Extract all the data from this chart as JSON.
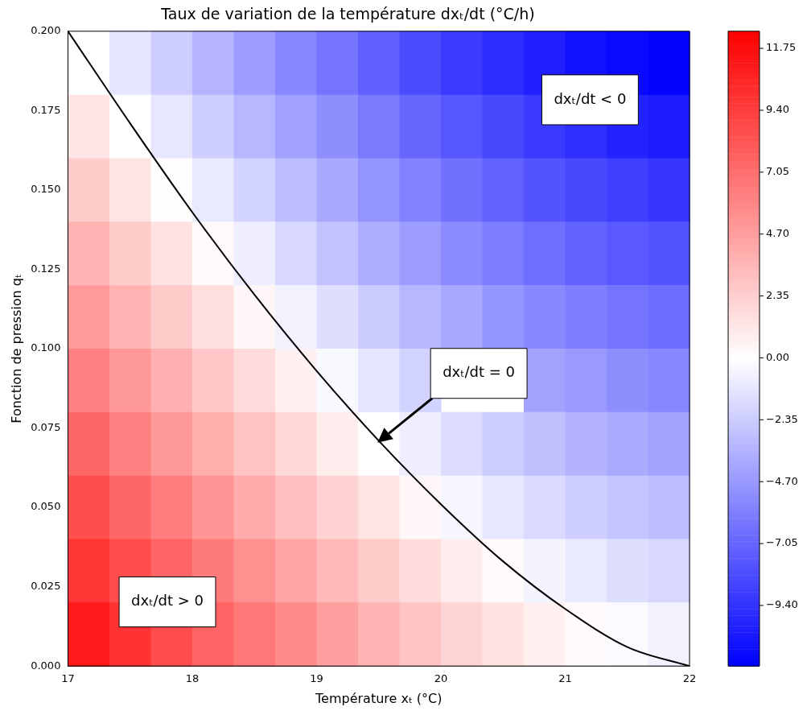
{
  "chart_data": {
    "type": "heatmap",
    "title": "Taux de variation de la température dxₜ/dt (°C/h)",
    "xlabel": "Température xₜ (°C)",
    "ylabel": "Fonction de pression qₜ",
    "x": [
      17.167,
      17.5,
      17.833,
      18.167,
      18.5,
      18.833,
      19.167,
      19.5,
      19.833,
      20.167,
      20.5,
      20.833,
      21.167,
      21.5,
      21.833
    ],
    "y": [
      0.19,
      0.17,
      0.15,
      0.13,
      0.11,
      0.09,
      0.07,
      0.05,
      0.03,
      0.01
    ],
    "xlim": [
      17,
      22
    ],
    "xticks": [
      17,
      18,
      19,
      20,
      21,
      22
    ],
    "ylim": [
      0,
      0.2
    ],
    "yticks": [
      {
        "value": 0,
        "label": "0.000"
      },
      {
        "value": 0.025,
        "label": "0.025"
      },
      {
        "value": 0.05,
        "label": "0.050"
      },
      {
        "value": 0.075,
        "label": "0.075"
      },
      {
        "value": 0.1,
        "label": "0.100"
      },
      {
        "value": 0.125,
        "label": "0.125"
      },
      {
        "value": 0.15,
        "label": "0.150"
      },
      {
        "value": 0.175,
        "label": "0.175"
      },
      {
        "value": 0.2,
        "label": "0.200"
      }
    ],
    "cells": [
      [
        0.0,
        -1.2,
        -2.3,
        -3.4,
        -4.5,
        -5.5,
        -6.4,
        -7.3,
        -8.2,
        -9.0,
        -9.7,
        -10.3,
        -10.9,
        -11.3,
        -11.6
      ],
      [
        1.2,
        0.0,
        -1.1,
        -2.2,
        -3.3,
        -4.3,
        -5.2,
        -6.1,
        -7.0,
        -7.7,
        -8.4,
        -9.1,
        -9.6,
        -10.1,
        -10.4
      ],
      [
        2.5,
        1.3,
        0.1,
        -1.0,
        -2.0,
        -3.0,
        -4.0,
        -4.9,
        -5.7,
        -6.5,
        -7.2,
        -7.9,
        -8.4,
        -8.8,
        -9.2
      ],
      [
        3.7,
        2.5,
        1.4,
        0.3,
        -0.8,
        -1.8,
        -2.8,
        -3.7,
        -4.5,
        -5.3,
        -6.0,
        -6.6,
        -7.2,
        -7.6,
        -7.9
      ],
      [
        4.9,
        3.7,
        2.6,
        1.5,
        0.4,
        -0.6,
        -1.5,
        -2.4,
        -3.3,
        -4.0,
        -4.8,
        -5.4,
        -5.9,
        -6.4,
        -6.7
      ],
      [
        6.2,
        5.0,
        3.8,
        2.7,
        1.7,
        0.7,
        -0.3,
        -1.2,
        -2.0,
        null,
        null,
        -4.2,
        -4.7,
        -5.2,
        -5.5
      ],
      [
        7.4,
        6.2,
        5.0,
        4.0,
        2.9,
        1.9,
        0.9,
        0.0,
        -0.8,
        -1.6,
        -2.3,
        -2.9,
        -3.5,
        -3.9,
        -4.2
      ],
      [
        8.6,
        7.4,
        6.3,
        5.2,
        4.1,
        3.1,
        2.2,
        1.3,
        0.4,
        -0.4,
        -1.1,
        -1.7,
        -2.2,
        -2.7,
        -3.0
      ],
      [
        9.8,
        8.7,
        7.5,
        6.4,
        5.4,
        4.4,
        3.4,
        2.5,
        1.7,
        0.9,
        0.2,
        -0.5,
        -1.0,
        -1.5,
        -1.8
      ],
      [
        11.1,
        9.9,
        8.7,
        7.6,
        6.6,
        5.6,
        4.6,
        3.7,
        2.9,
        2.1,
        1.4,
        0.8,
        0.2,
        -0.2,
        -0.6
      ]
    ],
    "clim": [
      -11.7,
      12.4
    ],
    "cticks": [
      {
        "value": 11.75,
        "label": "11.75"
      },
      {
        "value": 9.4,
        "label": "9.40"
      },
      {
        "value": 7.05,
        "label": "7.05"
      },
      {
        "value": 4.7,
        "label": "4.70"
      },
      {
        "value": 2.35,
        "label": "2.35"
      },
      {
        "value": 0,
        "label": "0.00"
      },
      {
        "value": -2.35,
        "label": "−2.35"
      },
      {
        "value": -4.7,
        "label": "−4.70"
      },
      {
        "value": -7.05,
        "label": "−7.05"
      },
      {
        "value": -9.4,
        "label": "−9.40"
      }
    ],
    "series": [
      {
        "type": "line",
        "color": "#000000",
        "x": [
          17,
          17.5,
          18,
          18.5,
          19,
          19.5,
          20,
          20.5,
          21,
          21.5,
          22
        ],
        "values": [
          0.2,
          0.171,
          0.143,
          0.117,
          0.093,
          0.071,
          0.051,
          0.033,
          0.018,
          0.006,
          0
        ]
      }
    ],
    "annotations": [
      "dxₜ/dt = 0",
      "dxₜ/dt < 0",
      "dxₜ/dt > 0"
    ],
    "grid": false,
    "legend": false
  }
}
